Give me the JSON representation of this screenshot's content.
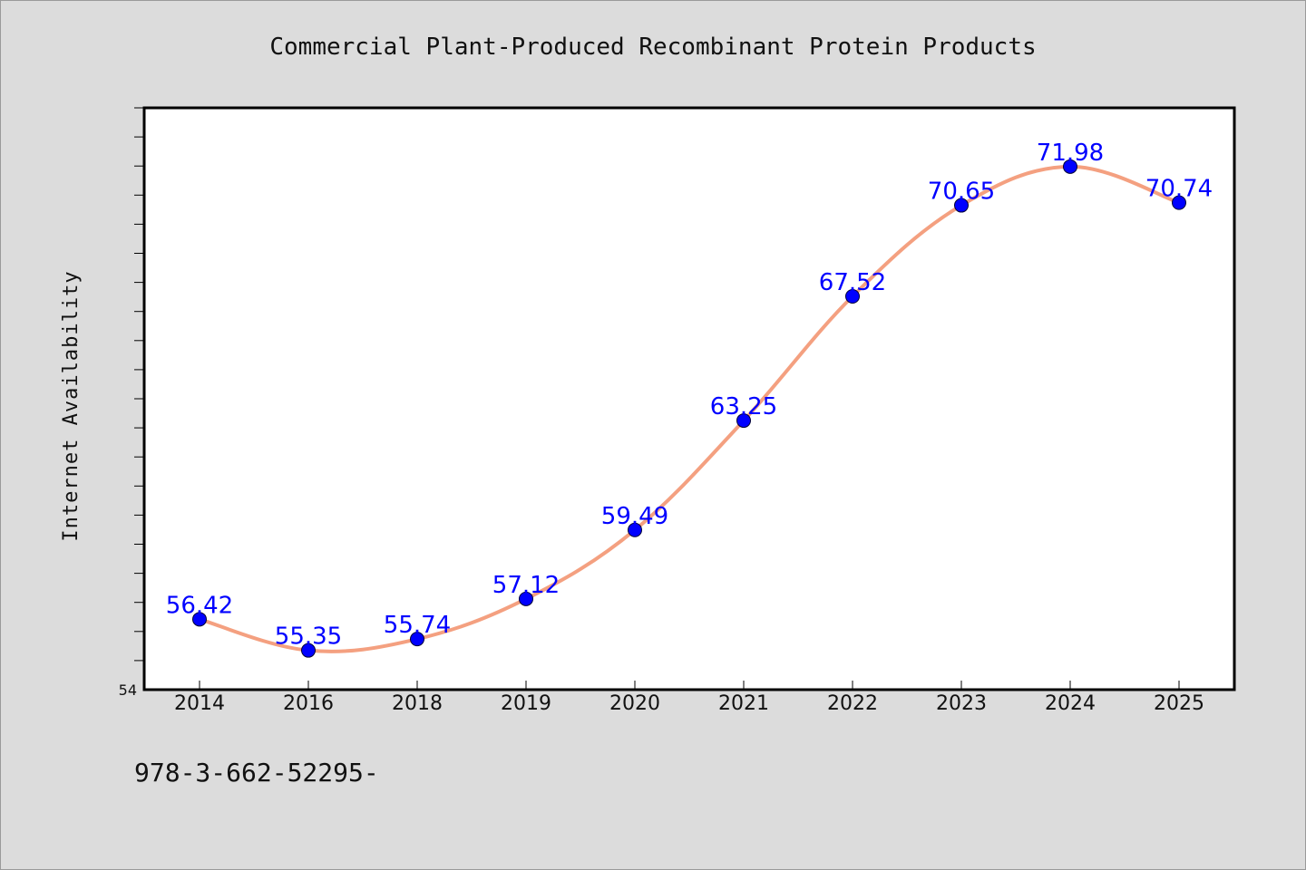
{
  "chart_data": {
    "type": "line",
    "title": "Commercial Plant-Produced Recombinant Protein Products",
    "xlabel": "",
    "ylabel": "Internet Availability",
    "categories": [
      "2014",
      "2016",
      "2018",
      "2019",
      "2020",
      "2021",
      "2022",
      "2023",
      "2024",
      "2025"
    ],
    "series": [
      {
        "values": [
          56.42,
          55.35,
          55.74,
          57.12,
          59.49,
          63.25,
          67.52,
          70.65,
          71.98,
          70.74
        ],
        "labels": [
          "56.42",
          "55.35",
          "55.74",
          "57.12",
          "59.49",
          "63.25",
          "67.52",
          "70.65",
          "71.98",
          "70.74"
        ]
      }
    ],
    "ylim": [
      54,
      74
    ],
    "y_tick_labels": [
      "54"
    ],
    "grid": false,
    "line_color": "#f4a080",
    "marker_color": "#0000ff",
    "label_color": "#0000ff"
  },
  "footer": {
    "text": "978-3-662-52295-"
  }
}
